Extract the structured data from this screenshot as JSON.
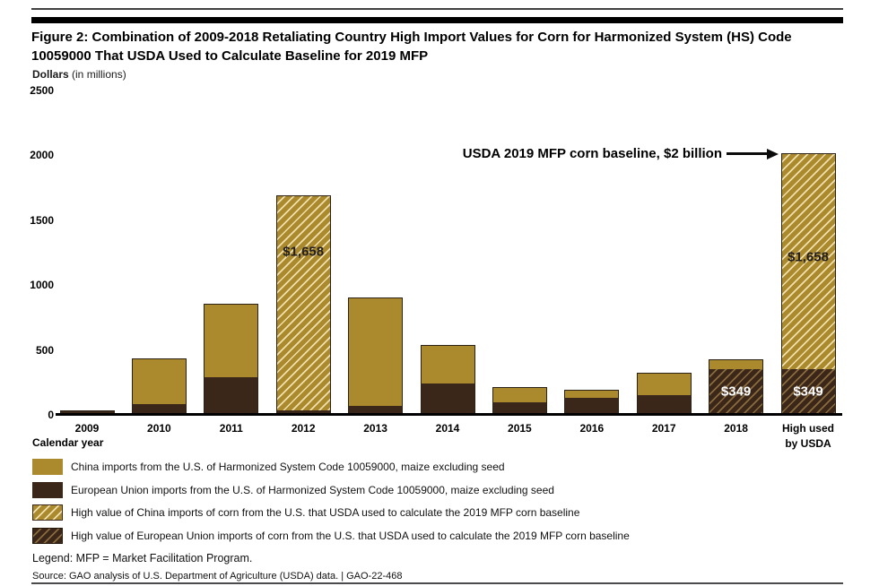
{
  "page": {
    "title_line1": "Figure 2: Combination of 2009-2018 Retaliating Country High Import Values for Corn for Harmonized System (HS) Code",
    "title_line2": "10059000 That USDA Used to Calculate Baseline for 2019 MFP",
    "y_axis_title_bold": "Dollars",
    "y_axis_title_rest": " (in millions)",
    "x_axis_title": "Calendar year",
    "annotation": "USDA 2019 MFP corn baseline, $2 billion",
    "legend_note": "Legend: MFP = Market Facilitation Program.",
    "source": "Source: GAO analysis of U.S. Department of Agriculture (USDA) data.  |  GAO-22-468"
  },
  "colors": {
    "china_gold": "#AB8A2D",
    "eu_brown": "#3B261A",
    "hatch_cream": "#EFE0AE",
    "hatch_tan": "#8A6B3C"
  },
  "legend": {
    "items": [
      {
        "style": "china_solid",
        "label": "China imports from the U.S. of Harmonized System Code 10059000, maize excluding seed"
      },
      {
        "style": "eu_solid",
        "label": "European Union imports from the U.S. of Harmonized System Code 10059000, maize excluding seed"
      },
      {
        "style": "china_hatched",
        "label": "High value of China imports of corn from the U.S. that USDA used to calculate the 2019 MFP corn baseline"
      },
      {
        "style": "eu_hatched",
        "label": "High value of European Union imports of corn from the U.S. that USDA used to calculate the 2019 MFP corn baseline"
      }
    ]
  },
  "chart_data": {
    "type": "bar",
    "stacked": true,
    "title": "Figure 2: Combination of 2009-2018 Retaliating Country High Import Values for Corn for Harmonized System (HS) Code 10059000 That USDA Used to Calculate Baseline for 2019 MFP",
    "ylabel": "Dollars (in millions)",
    "xlabel": "Calendar year",
    "unit": "US dollars in millions",
    "ylim": [
      0,
      2500
    ],
    "yticks": [
      0,
      500,
      1000,
      1500,
      2000,
      2500
    ],
    "grid": false,
    "legend_position": "bottom",
    "annotation": {
      "text": "USDA 2019 MFP corn baseline, $2 billion",
      "target_category": "High used\nby USDA",
      "target_value": 2007
    },
    "categories": [
      "2009",
      "2010",
      "2011",
      "2012",
      "2013",
      "2014",
      "2015",
      "2016",
      "2017",
      "2018",
      "High used\nby USDA"
    ],
    "bars": [
      {
        "category": "2009",
        "segments": [
          {
            "series": "eu_solid",
            "value": 25
          }
        ]
      },
      {
        "category": "2010",
        "segments": [
          {
            "series": "eu_solid",
            "value": 75
          },
          {
            "series": "china_solid",
            "value": 355
          }
        ]
      },
      {
        "category": "2011",
        "segments": [
          {
            "series": "eu_solid",
            "value": 285
          },
          {
            "series": "china_solid",
            "value": 565
          }
        ]
      },
      {
        "category": "2012",
        "segments": [
          {
            "series": "eu_solid",
            "value": 25
          },
          {
            "series": "china_hatched",
            "value": 1658,
            "label": "$1,658",
            "label_frac": 0.26
          }
        ]
      },
      {
        "category": "2013",
        "segments": [
          {
            "series": "eu_solid",
            "value": 60
          },
          {
            "series": "china_solid",
            "value": 840
          }
        ]
      },
      {
        "category": "2014",
        "segments": [
          {
            "series": "eu_solid",
            "value": 240
          },
          {
            "series": "china_solid",
            "value": 295
          }
        ]
      },
      {
        "category": "2015",
        "segments": [
          {
            "series": "eu_solid",
            "value": 90
          },
          {
            "series": "china_solid",
            "value": 115
          }
        ]
      },
      {
        "category": "2016",
        "segments": [
          {
            "series": "eu_solid",
            "value": 130
          },
          {
            "series": "china_solid",
            "value": 55
          }
        ]
      },
      {
        "category": "2017",
        "segments": [
          {
            "series": "eu_solid",
            "value": 150
          },
          {
            "series": "china_solid",
            "value": 165
          }
        ]
      },
      {
        "category": "2018",
        "segments": [
          {
            "series": "eu_hatched",
            "value": 349,
            "label": "$349",
            "label_light": true
          },
          {
            "series": "china_solid",
            "value": 70
          }
        ]
      },
      {
        "category": "High used\nby USDA",
        "segments": [
          {
            "series": "eu_hatched",
            "value": 349,
            "label": "$349",
            "label_light": true
          },
          {
            "series": "china_hatched",
            "value": 1658,
            "label": "$1,658",
            "label_frac": 0.48
          }
        ]
      }
    ]
  }
}
